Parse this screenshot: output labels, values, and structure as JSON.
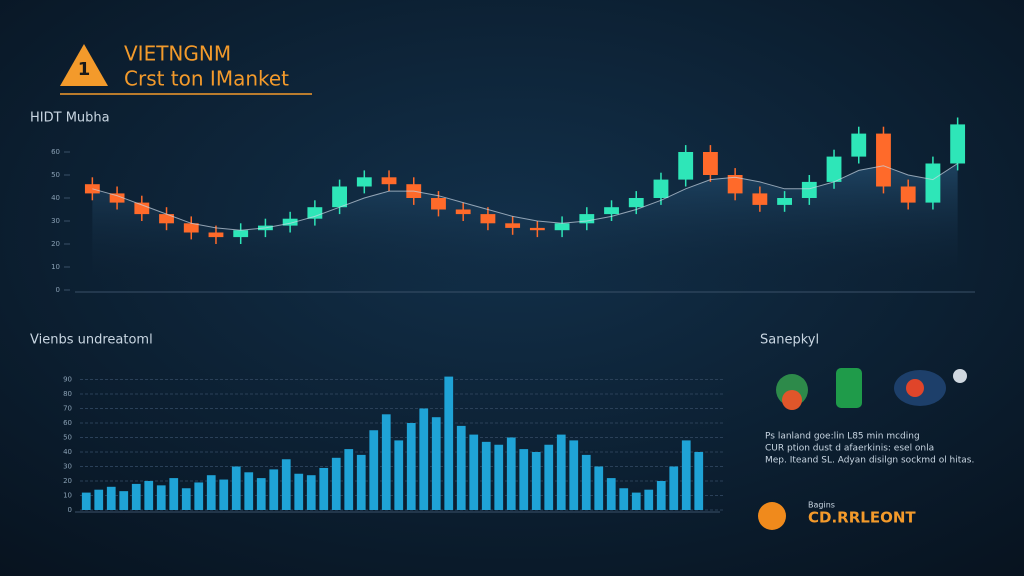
{
  "header": {
    "badge": "1",
    "title": "VIETNGNM",
    "subtitle": "Crst ton IManket"
  },
  "chart_data": [
    {
      "type": "candlestick",
      "title": "HIDT Mubha",
      "open": [
        46,
        42,
        38,
        33,
        29,
        25,
        23,
        26,
        28,
        31,
        36,
        45,
        49,
        46,
        40,
        35,
        33,
        29,
        27,
        26,
        29,
        33,
        36,
        40,
        48,
        60,
        50,
        42,
        37,
        40,
        47,
        58,
        68,
        45,
        38,
        55
      ],
      "high": [
        49,
        45,
        41,
        36,
        32,
        28,
        29,
        31,
        34,
        39,
        48,
        52,
        52,
        49,
        43,
        38,
        36,
        32,
        30,
        32,
        36,
        39,
        43,
        51,
        63,
        63,
        53,
        45,
        43,
        50,
        61,
        71,
        71,
        48,
        58,
        75
      ],
      "low": [
        39,
        35,
        30,
        26,
        22,
        20,
        20,
        23,
        25,
        28,
        33,
        42,
        43,
        37,
        32,
        30,
        26,
        24,
        23,
        23,
        26,
        30,
        33,
        37,
        45,
        47,
        39,
        34,
        34,
        37,
        44,
        55,
        42,
        35,
        35,
        52
      ],
      "close": [
        42,
        38,
        33,
        29,
        25,
        23,
        26,
        28,
        31,
        36,
        45,
        49,
        46,
        40,
        35,
        33,
        29,
        27,
        26,
        29,
        33,
        36,
        40,
        48,
        60,
        50,
        42,
        37,
        40,
        47,
        58,
        68,
        45,
        38,
        55,
        72
      ],
      "ma": [
        44,
        41,
        37,
        33,
        29,
        27,
        26,
        27,
        29,
        32,
        36,
        40,
        43,
        43,
        41,
        38,
        35,
        32,
        30,
        29,
        30,
        32,
        35,
        39,
        44,
        48,
        49,
        47,
        44,
        44,
        47,
        52,
        54,
        50,
        48,
        55
      ],
      "up_color": "#2ee6b8",
      "down_color": "#ff6a2a",
      "ma_color": "#c9d6e2",
      "ylim": [
        0,
        100
      ],
      "yticks": [
        0,
        10,
        20,
        30,
        40,
        50,
        60
      ]
    },
    {
      "type": "bar",
      "title": "Vienbs undreatoml",
      "color": "#1fa3d6",
      "values": [
        12,
        14,
        16,
        13,
        18,
        20,
        17,
        22,
        15,
        19,
        24,
        21,
        30,
        26,
        22,
        28,
        35,
        25,
        24,
        29,
        36,
        42,
        38,
        55,
        66,
        48,
        60,
        70,
        64,
        92,
        58,
        52,
        47,
        45,
        50,
        42,
        40,
        45,
        52,
        48,
        38,
        30,
        22,
        15,
        12,
        14,
        20,
        30,
        48,
        40
      ],
      "ylim": [
        0,
        100
      ],
      "yticks": [
        0,
        10,
        20,
        30,
        40,
        50,
        60,
        70,
        80,
        90
      ],
      "grid": true
    }
  ],
  "panel": {
    "title": "Sanepkyl",
    "lines": [
      "Ps lanland goe:lin L85 min mcding",
      "CUR ption dust d afaerkinis: esel onla",
      "Mep. Iteand SL. Adyan disilgn sockmd ol hitas."
    ],
    "button_caption": "Bagins",
    "button": "CD.RRLEONT"
  }
}
